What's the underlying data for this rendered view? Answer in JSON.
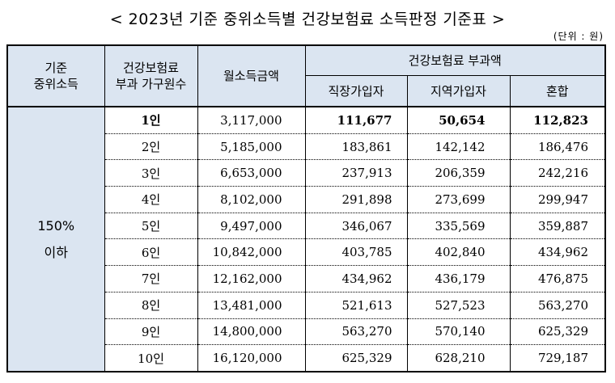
{
  "title": "< 2023년 기준 중위소득별 건강보험료 소득판정 기준표 >",
  "unit": "(단위 : 원)",
  "headers": {
    "median_income": [
      "기준",
      "중위소득"
    ],
    "household": [
      "건강보험료",
      "부과 가구원수"
    ],
    "monthly_income": "월소득금액",
    "premium_group": "건강보험료 부과액",
    "employee": "직장가입자",
    "regional": "지역가입자",
    "mixed": "혼합"
  },
  "group": [
    "150%",
    "이하"
  ],
  "rows": [
    {
      "household": "1인",
      "income": "3,117,000",
      "employee": "111,677",
      "regional": "50,654",
      "mixed": "112,823"
    },
    {
      "household": "2인",
      "income": "5,185,000",
      "employee": "183,861",
      "regional": "142,142",
      "mixed": "186,476"
    },
    {
      "household": "3인",
      "income": "6,653,000",
      "employee": "237,913",
      "regional": "206,359",
      "mixed": "242,216"
    },
    {
      "household": "4인",
      "income": "8,102,000",
      "employee": "291,898",
      "regional": "273,699",
      "mixed": "299,947"
    },
    {
      "household": "5인",
      "income": "9,497,000",
      "employee": "346,067",
      "regional": "335,569",
      "mixed": "359,887"
    },
    {
      "household": "6인",
      "income": "10,842,000",
      "employee": "403,785",
      "regional": "402,840",
      "mixed": "434,962"
    },
    {
      "household": "7인",
      "income": "12,162,000",
      "employee": "434,962",
      "regional": "436,179",
      "mixed": "476,875"
    },
    {
      "household": "8인",
      "income": "13,481,000",
      "employee": "521,613",
      "regional": "527,523",
      "mixed": "563,270"
    },
    {
      "household": "9인",
      "income": "14,800,000",
      "employee": "563,270",
      "regional": "570,140",
      "mixed": "625,329"
    },
    {
      "household": "10인",
      "income": "16,120,000",
      "employee": "625,329",
      "regional": "628,210",
      "mixed": "729,187"
    }
  ]
}
